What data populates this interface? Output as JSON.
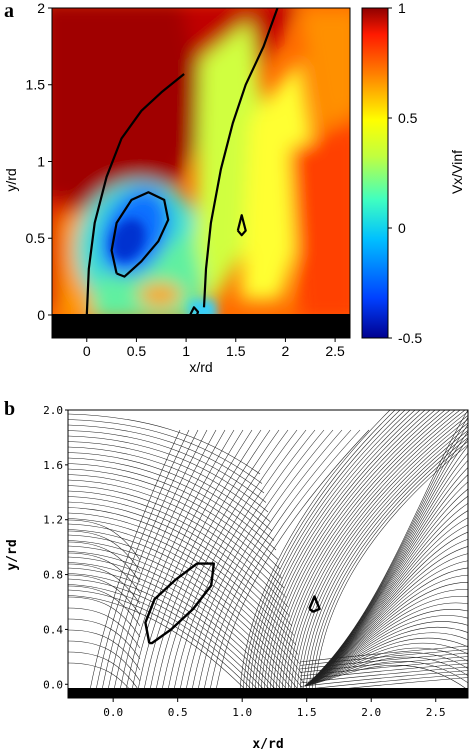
{
  "figure": {
    "panel_a_label": "a",
    "panel_b_label": "b"
  },
  "chart_data": [
    {
      "type": "heatmap",
      "panel": "a",
      "xlabel": "x/rd",
      "ylabel": "y/rd",
      "xlim": [
        -0.35,
        2.65
      ],
      "ylim": [
        -0.15,
        2.0
      ],
      "x_ticks": [
        "0",
        "0.5",
        "1",
        "1.5",
        "2",
        "2.5"
      ],
      "x_tick_values": [
        0,
        0.5,
        1,
        1.5,
        2,
        2.5
      ],
      "y_ticks": [
        "0",
        "0.5",
        "1",
        "1.5",
        "2"
      ],
      "y_tick_values": [
        0,
        0.5,
        1,
        1.5,
        2
      ],
      "colorbar": {
        "label": "Vx/Vinf",
        "range": [
          -0.5,
          1.0
        ],
        "ticks": [
          "1",
          "0.5",
          "0",
          "-0.5"
        ],
        "tick_values": [
          1,
          0.5,
          0,
          -0.5
        ]
      },
      "zero_contours": [
        {
          "x": [
            0.0,
            0.02,
            0.08,
            0.2,
            0.35,
            0.55,
            0.75,
            0.98
          ],
          "y": [
            0.0,
            0.3,
            0.6,
            0.9,
            1.15,
            1.33,
            1.45,
            1.57
          ]
        },
        {
          "x": [
            1.18,
            1.2,
            1.25,
            1.35,
            1.47,
            1.6,
            1.78,
            1.92
          ],
          "y": [
            0.05,
            0.3,
            0.6,
            0.95,
            1.25,
            1.5,
            1.75,
            2.0
          ]
        },
        {
          "x": [
            0.3,
            0.25,
            0.3,
            0.45,
            0.62,
            0.78,
            0.82,
            0.72,
            0.55,
            0.38,
            0.3
          ],
          "y": [
            0.27,
            0.42,
            0.6,
            0.75,
            0.8,
            0.75,
            0.62,
            0.48,
            0.35,
            0.25,
            0.27
          ]
        },
        {
          "x": [
            1.52,
            1.56,
            1.6,
            1.56,
            1.52
          ],
          "y": [
            0.55,
            0.65,
            0.55,
            0.52,
            0.55
          ]
        },
        {
          "x": [
            1.04,
            1.08,
            1.12,
            1.1,
            1.04
          ],
          "y": [
            0.0,
            0.05,
            0.02,
            -0.02,
            0.0
          ]
        }
      ]
    },
    {
      "type": "streamlines",
      "panel": "b",
      "xlabel": "x/rd",
      "ylabel": "y/rd",
      "xlim": [
        -0.35,
        2.75
      ],
      "ylim": [
        -0.1,
        2.0
      ],
      "x_ticks": [
        "0.0",
        "0.5",
        "1.0",
        "1.5",
        "2.0",
        "2.5"
      ],
      "x_tick_values": [
        0,
        0.5,
        1.0,
        1.5,
        2.0,
        2.5
      ],
      "y_ticks": [
        "0.0",
        "0.4",
        "0.8",
        "1.2",
        "1.6",
        "2.0"
      ],
      "y_tick_values": [
        0,
        0.4,
        0.8,
        1.2,
        1.6,
        2.0
      ],
      "contours": [
        {
          "x": [
            0.28,
            0.25,
            0.32,
            0.48,
            0.65,
            0.78,
            0.76,
            0.62,
            0.45,
            0.3,
            0.28
          ],
          "y": [
            0.3,
            0.45,
            0.62,
            0.76,
            0.88,
            0.88,
            0.72,
            0.55,
            0.4,
            0.3,
            0.3
          ]
        },
        {
          "x": [
            1.52,
            1.56,
            1.6,
            1.55,
            1.52
          ],
          "y": [
            0.55,
            0.64,
            0.55,
            0.53,
            0.55
          ]
        }
      ]
    }
  ]
}
